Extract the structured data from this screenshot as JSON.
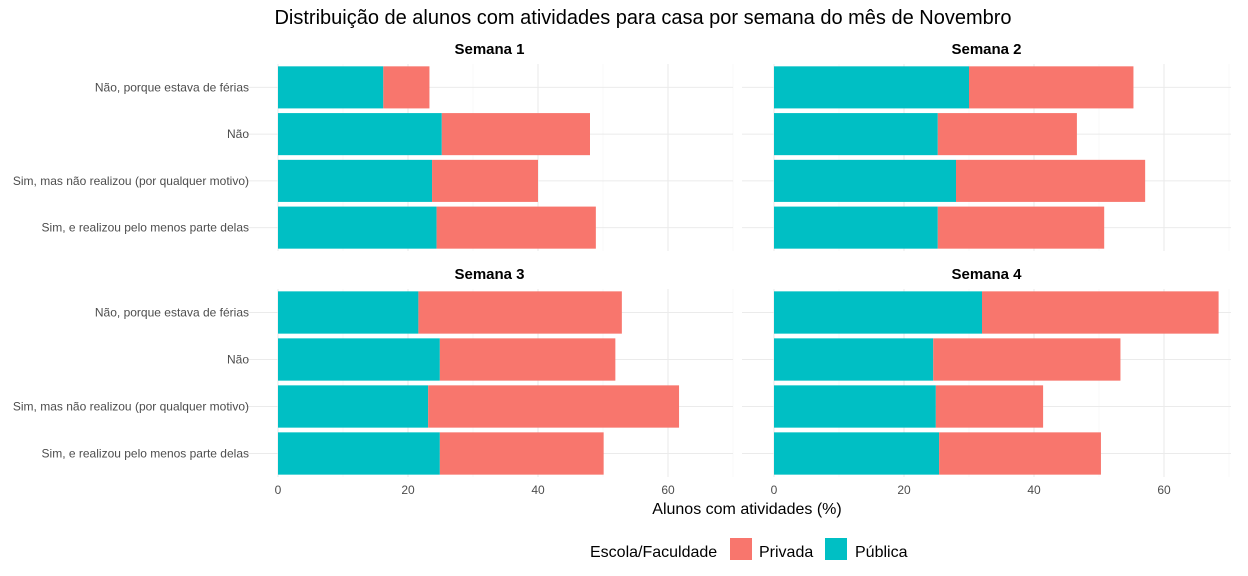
{
  "chart_data": {
    "type": "bar",
    "orientation": "horizontal",
    "stacked": true,
    "title": "Distribuição de alunos com atividades para casa por semana do mês de Novembro",
    "xlabel": "Alunos com atividades (%)",
    "ylabel": "",
    "xlim": [
      0,
      70
    ],
    "xticks": [
      0,
      20,
      40,
      60
    ],
    "grid": true,
    "legend": {
      "title": "Escola/Faculdade",
      "position": "bottom",
      "entries": [
        {
          "name": "Privada",
          "color": "#F8766D"
        },
        {
          "name": "Pública",
          "color": "#00BFC4"
        }
      ]
    },
    "categories": [
      "Não, porque estava de férias",
      "Não",
      "Sim, mas não realizou (por qualquer motivo)",
      "Sim, e realizou pelo menos parte delas"
    ],
    "facets": [
      {
        "name": "Semana 1",
        "series": [
          {
            "name": "Pública",
            "values": [
              16.2,
              25.2,
              23.7,
              24.4
            ]
          },
          {
            "name": "Privada",
            "values": [
              7.1,
              22.8,
              16.3,
              24.5
            ]
          }
        ]
      },
      {
        "name": "Semana 2",
        "series": [
          {
            "name": "Pública",
            "values": [
              30.0,
              25.2,
              28.0,
              25.2
            ]
          },
          {
            "name": "Privada",
            "values": [
              25.3,
              21.4,
              29.1,
              25.6
            ]
          }
        ]
      },
      {
        "name": "Semana 3",
        "series": [
          {
            "name": "Pública",
            "values": [
              21.6,
              24.9,
              23.1,
              24.9
            ]
          },
          {
            "name": "Privada",
            "values": [
              31.3,
              27.0,
              38.6,
              25.2
            ]
          }
        ]
      },
      {
        "name": "Semana 4",
        "series": [
          {
            "name": "Pública",
            "values": [
              32.0,
              24.5,
              24.9,
              25.4
            ]
          },
          {
            "name": "Privada",
            "values": [
              36.4,
              28.8,
              16.5,
              24.9
            ]
          }
        ]
      }
    ]
  }
}
